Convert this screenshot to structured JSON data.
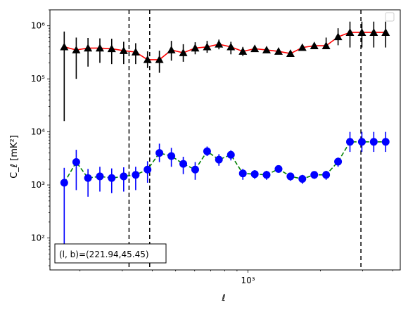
{
  "chart_data": {
    "type": "scatter",
    "title": "",
    "xlabel": "ℓ",
    "ylabel": "C_ℓ  [mK²]",
    "xscale": "log",
    "yscale": "log",
    "xlim": [
      150,
      4300
    ],
    "ylim": [
      25,
      2000000
    ],
    "grid": false,
    "legend": {
      "placement": "top-right",
      "entries": []
    },
    "annotation": "(l, b)=(221.94,45.45)",
    "x_tick_labels": [
      {
        "value": 1000,
        "label": "10³"
      }
    ],
    "y_tick_labels": [
      {
        "value": 100,
        "label": "10²"
      },
      {
        "value": 1000,
        "label": "10³"
      },
      {
        "value": 10000,
        "label": "10⁴"
      },
      {
        "value": 100000,
        "label": "10⁵"
      },
      {
        "value": 1000000,
        "label": "10⁶"
      }
    ],
    "vlines": [
      320,
      390,
      2950
    ],
    "series": [
      {
        "marker": "triangle",
        "marker_color": "#000000",
        "fit_line_color": "#ff0000",
        "x": [
          172,
          193,
          216,
          242,
          271,
          304,
          341,
          382,
          428,
          480,
          538,
          603,
          676,
          757,
          849,
          952,
          1067,
          1195,
          1340,
          1502,
          1683,
          1887,
          2114,
          2370,
          2656,
          2977,
          3336,
          3739
        ],
        "y": [
          400000,
          350000,
          380000,
          380000,
          370000,
          340000,
          320000,
          230000,
          230000,
          350000,
          310000,
          380000,
          400000,
          450000,
          400000,
          330000,
          370000,
          350000,
          330000,
          300000,
          390000,
          420000,
          420000,
          620000,
          750000,
          750000,
          750000,
          750000
        ],
        "err_low": [
          16000,
          100000,
          170000,
          200000,
          190000,
          190000,
          190000,
          160000,
          130000,
          220000,
          210000,
          290000,
          310000,
          360000,
          290000,
          270000,
          330000,
          310000,
          290000,
          270000,
          350000,
          380000,
          370000,
          430000,
          390000,
          390000,
          390000,
          390000
        ],
        "err_high": [
          780000,
          600000,
          590000,
          580000,
          570000,
          500000,
          470000,
          330000,
          340000,
          520000,
          450000,
          490000,
          520000,
          550000,
          500000,
          400000,
          410000,
          390000,
          370000,
          330000,
          430000,
          460000,
          600000,
          900000,
          1200000,
          1200000,
          1200000,
          1200000
        ]
      },
      {
        "marker": "circle",
        "marker_color": "#0000ff",
        "fit_line_color": "#008000",
        "x": [
          172,
          193,
          216,
          242,
          271,
          304,
          341,
          382,
          428,
          480,
          538,
          603,
          676,
          757,
          849,
          952,
          1067,
          1195,
          1340,
          1502,
          1683,
          1887,
          2114,
          2370,
          2656,
          2977,
          3336,
          3739
        ],
        "y": [
          1100,
          2700,
          1350,
          1450,
          1350,
          1450,
          1550,
          1950,
          4000,
          3500,
          2500,
          1950,
          4300,
          3000,
          3700,
          1650,
          1600,
          1550,
          2000,
          1450,
          1300,
          1550,
          1550,
          2750,
          6500,
          6500,
          6500,
          6500
        ],
        "err_low": [
          50,
          800,
          600,
          750,
          700,
          750,
          800,
          1100,
          2700,
          2200,
          1600,
          1250,
          3500,
          2300,
          2900,
          1250,
          1300,
          1250,
          1700,
          1200,
          1050,
          1300,
          1250,
          2200,
          4200,
          4200,
          4200,
          4200
        ],
        "err_high": [
          2100,
          4600,
          2000,
          2200,
          2050,
          2150,
          2200,
          2800,
          6000,
          5000,
          3400,
          2700,
          5300,
          3800,
          4500,
          2000,
          1900,
          1850,
          2350,
          1700,
          1550,
          1800,
          1850,
          3300,
          10000,
          10000,
          10000,
          10000
        ]
      }
    ]
  }
}
